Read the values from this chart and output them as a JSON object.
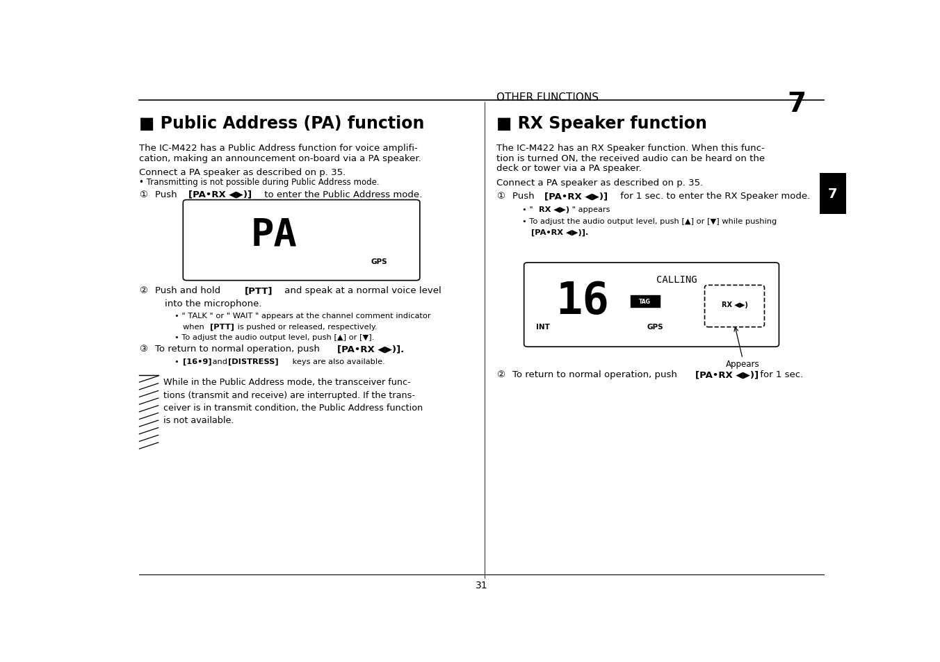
{
  "bg_color": "#ffffff",
  "left_title": "■ Public Address (PA) function",
  "right_title": "■ RX Speaker function",
  "header_text": "OTHER FUNCTIONS",
  "header_number": "7",
  "page_number": "31",
  "tab_label": "7",
  "intro_left_l1": "The IC-M422 has a Public Address function for voice amplifi-",
  "intro_left_l2": "cation, making an announcement on-board via a PA speaker.",
  "intro_right_l1": "The IC-M422 has an RX Speaker function. When this func-",
  "intro_right_l2": "tion is turned ON, the received audio can be heard on the",
  "intro_right_l3": "deck or tower via a PA speaker.",
  "connect_line": "Connect a PA speaker as described on p. 35.",
  "no_transmit": "• Transmitting is not possible during Public Address mode.",
  "caution_text_l1": "While in the Public Address mode, the transceiver func-",
  "caution_text_l2": "tions (transmit and receive) are interrupted. If the trans-",
  "caution_text_l3": "ceiver is in transmit condition, the Public Address function",
  "caution_text_l4": "is not available."
}
